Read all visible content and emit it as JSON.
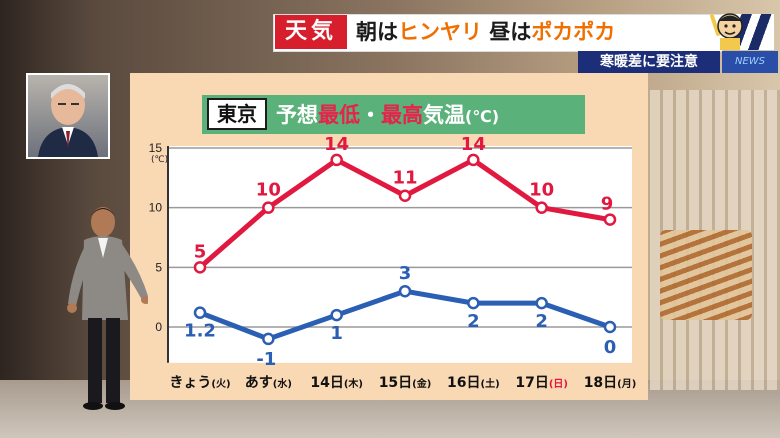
{
  "header": {
    "badge": "天気",
    "headline_parts": [
      "朝は",
      "ヒンヤリ",
      " 昼は",
      "ポカポカ"
    ],
    "subtitle": "寒暖差に要注意",
    "news_tag": "NEWS"
  },
  "board": {
    "city": "東京",
    "title_parts": [
      "予想",
      "最低",
      "・",
      "最高",
      "気温",
      "(℃)"
    ]
  },
  "chart_data": {
    "type": "line",
    "title": "東京 予想最低・最高気温(℃)",
    "y_unit_label": "(℃)",
    "categories": [
      "きょう(火)",
      "あす(水)",
      "14日(木)",
      "15日(金)",
      "16日(土)",
      "17日(日)",
      "18日(月)"
    ],
    "category_parts": [
      {
        "main": "きょう",
        "day": "(火)",
        "day_color": "#111111"
      },
      {
        "main": "あす",
        "day": "(水)",
        "day_color": "#111111"
      },
      {
        "main": "14日",
        "day": "(木)",
        "day_color": "#111111"
      },
      {
        "main": "15日",
        "day": "(金)",
        "day_color": "#111111"
      },
      {
        "main": "16日",
        "day": "(土)",
        "day_color": "#111111"
      },
      {
        "main": "17日",
        "day": "(日)",
        "day_color": "#e1183f"
      },
      {
        "main": "18日",
        "day": "(月)",
        "day_color": "#111111"
      }
    ],
    "series": [
      {
        "key": "high",
        "values": [
          5,
          10,
          14,
          11,
          14,
          10,
          9
        ],
        "labels": [
          "5",
          "10",
          "14",
          "11",
          "14",
          "10",
          "9"
        ],
        "color": "#e1183f"
      },
      {
        "key": "low",
        "values": [
          1.2,
          -1,
          1,
          3,
          2,
          2,
          0
        ],
        "labels": [
          "1.2",
          "-1",
          "1",
          "3",
          "2",
          "2",
          "0"
        ],
        "color": "#2a5fb3"
      }
    ],
    "ylim": [
      -3,
      15
    ],
    "yticks": [
      0,
      5,
      10,
      15
    ],
    "grid": true
  }
}
